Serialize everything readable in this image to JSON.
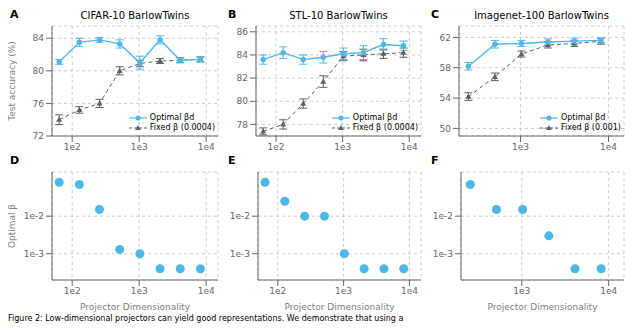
{
  "chart_data": [
    {
      "type": "line",
      "title": "CIFAR-10 BarlowTwins",
      "annotations": [
        "A"
      ],
      "ylabel": "Test accuracy (%)",
      "log": "x",
      "grid": true,
      "legend": "lower right",
      "xlim": [
        50,
        15000
      ],
      "xticks": [
        {
          "value": 100,
          "label": "1e2"
        },
        {
          "value": 1000,
          "label": "1e3"
        },
        {
          "value": 10000,
          "label": "1e4"
        }
      ],
      "ylim": [
        72,
        85.5
      ],
      "yticks": [
        72,
        76,
        80,
        84
      ],
      "x": [
        64,
        128,
        256,
        512,
        1024,
        2048,
        4096,
        8192
      ],
      "series": [
        {
          "name": "Optimal βd",
          "color": "#4db8e8",
          "marker": "circle",
          "line_style": "solid",
          "values": [
            81.1,
            83.5,
            83.8,
            83.3,
            81.0,
            83.8,
            81.3,
            81.4
          ],
          "yerr": [
            0.3,
            0.5,
            0.3,
            0.5,
            0.8,
            0.5,
            0.3,
            0.3
          ]
        },
        {
          "name": "Fixed β (0.0004)",
          "color": "#606060",
          "marker": "triangle",
          "line_style": "dashed",
          "values": [
            74.0,
            75.2,
            76.0,
            80.0,
            80.9,
            81.2,
            81.3,
            81.4
          ],
          "yerr": [
            0.6,
            0.4,
            0.5,
            0.5,
            0.4,
            0.3,
            0.3,
            0.3
          ]
        }
      ]
    },
    {
      "type": "line",
      "title": "STL-10 BarlowTwins",
      "annotations": [
        "B"
      ],
      "log": "x",
      "grid": true,
      "legend": "lower right",
      "xlim": [
        50,
        15000
      ],
      "xticks": [
        {
          "value": 100,
          "label": "1e2"
        },
        {
          "value": 1000,
          "label": "1e3"
        },
        {
          "value": 10000,
          "label": "1e4"
        }
      ],
      "ylim": [
        77,
        86.5
      ],
      "yticks": [
        78,
        80,
        82,
        84,
        86
      ],
      "x": [
        64,
        128,
        256,
        512,
        1024,
        2048,
        4096,
        8192
      ],
      "series": [
        {
          "name": "Optimal βd",
          "color": "#4db8e8",
          "marker": "circle",
          "line_style": "solid",
          "values": [
            83.6,
            84.2,
            83.6,
            83.8,
            84.1,
            84.2,
            84.9,
            84.8
          ],
          "yerr": [
            0.4,
            0.5,
            0.4,
            0.5,
            0.5,
            0.6,
            0.5,
            0.4
          ]
        },
        {
          "name": "Fixed β (0.0004)",
          "color": "#606060",
          "marker": "triangle",
          "line_style": "dashed",
          "values": [
            77.4,
            78.0,
            79.8,
            81.7,
            83.9,
            84.0,
            84.1,
            84.2
          ],
          "yerr": [
            0.3,
            0.4,
            0.4,
            0.5,
            0.4,
            0.5,
            0.4,
            0.4
          ]
        }
      ]
    },
    {
      "type": "line",
      "title": "Imagenet-100 BarlowTwins",
      "annotations": [
        "C"
      ],
      "log": "x",
      "grid": true,
      "legend": "lower right",
      "xlim": [
        200,
        15000
      ],
      "xticks": [
        {
          "value": 1000,
          "label": "1e3"
        },
        {
          "value": 10000,
          "label": "1e4"
        }
      ],
      "ylim": [
        49,
        63.5
      ],
      "yticks": [
        50,
        54,
        58,
        62
      ],
      "x": [
        256,
        512,
        1024,
        2048,
        4096,
        8192
      ],
      "series": [
        {
          "name": "Optimal βd",
          "color": "#4db8e8",
          "marker": "circle",
          "line_style": "solid",
          "values": [
            58.2,
            61.1,
            61.2,
            61.4,
            61.5,
            61.6
          ],
          "yerr": [
            0.5,
            0.5,
            0.4,
            0.4,
            0.4,
            0.3
          ]
        },
        {
          "name": "Fixed β (0.001)",
          "color": "#606060",
          "marker": "triangle",
          "line_style": "dashed",
          "values": [
            54.2,
            56.8,
            59.8,
            61.0,
            61.2,
            61.5
          ],
          "yerr": [
            0.5,
            0.5,
            0.4,
            0.4,
            0.4,
            0.4
          ]
        }
      ]
    },
    {
      "type": "scatter",
      "annotations": [
        "D"
      ],
      "xlabel": "Projector Dimensionality",
      "ylabel": "Optimal β",
      "log": true,
      "grid": true,
      "xlim": [
        50,
        15000
      ],
      "xticks": [
        {
          "value": 100,
          "label": "1e2"
        },
        {
          "value": 1000,
          "label": "1e3"
        },
        {
          "value": 10000,
          "label": "1e4"
        }
      ],
      "ylim": [
        0.0002,
        0.15
      ],
      "yticks": [
        {
          "value": 0.01,
          "label": "1e-2"
        },
        {
          "value": 0.001,
          "label": "1e-3"
        }
      ],
      "x": [
        64,
        128,
        256,
        512,
        1024,
        2048,
        4096,
        8192
      ],
      "values": [
        0.08,
        0.07,
        0.015,
        0.0013,
        0.001,
        0.0004,
        0.0004,
        0.0004
      ],
      "color": "#4db8e8"
    },
    {
      "type": "scatter",
      "annotations": [
        "E"
      ],
      "xlabel": "Projector Dimensionality",
      "log": true,
      "grid": true,
      "xlim": [
        50,
        15000
      ],
      "xticks": [
        {
          "value": 100,
          "label": "1e2"
        },
        {
          "value": 1000,
          "label": "1e3"
        },
        {
          "value": 10000,
          "label": "1e4"
        }
      ],
      "ylim": [
        0.0002,
        0.15
      ],
      "yticks": [
        {
          "value": 0.01,
          "label": "1e-2"
        },
        {
          "value": 0.001,
          "label": "1e-3"
        }
      ],
      "x": [
        64,
        128,
        256,
        512,
        1024,
        2048,
        4096,
        8192
      ],
      "values": [
        0.08,
        0.025,
        0.01,
        0.01,
        0.001,
        0.0004,
        0.0004,
        0.0004
      ],
      "color": "#4db8e8"
    },
    {
      "type": "scatter",
      "annotations": [
        "F"
      ],
      "xlabel": "Projector Dimensionality",
      "log": true,
      "grid": true,
      "xlim": [
        200,
        15000
      ],
      "xticks": [
        {
          "value": 1000,
          "label": "1e3"
        },
        {
          "value": 10000,
          "label": "1e4"
        }
      ],
      "ylim": [
        0.0002,
        0.15
      ],
      "yticks": [
        {
          "value": 0.01,
          "label": "1e-2"
        },
        {
          "value": 0.001,
          "label": "1e-3"
        }
      ],
      "x": [
        256,
        512,
        1024,
        2048,
        4096,
        8192
      ],
      "values": [
        0.07,
        0.015,
        0.015,
        0.003,
        0.0004,
        0.0004
      ],
      "color": "#4db8e8"
    }
  ],
  "annotations": [
    "Figure 2: Low-dimensional projectors can yield good representations. We demonstrate that using a"
  ]
}
